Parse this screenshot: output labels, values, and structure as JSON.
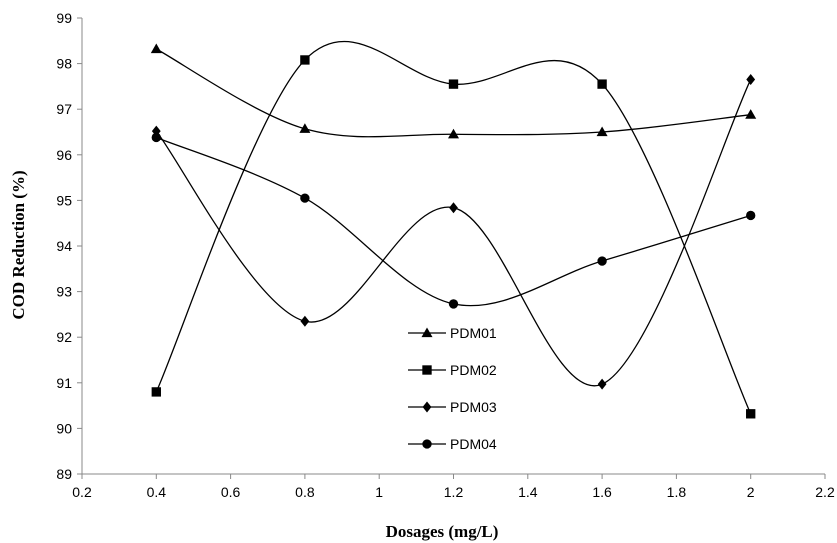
{
  "chart_data": {
    "type": "line",
    "title": "",
    "xlabel": "Dosages (mg/L)",
    "ylabel": "COD  Reduction  (%)",
    "xlim": [
      0.2,
      2.2
    ],
    "ylim": [
      89,
      99
    ],
    "xticks": [
      "0.2",
      "0.4",
      "0.6",
      "0.8",
      "1",
      "1.2",
      "1.4",
      "1.6",
      "1.8",
      "2",
      "2.2"
    ],
    "yticks": [
      "89",
      "90",
      "91",
      "92",
      "93",
      "94",
      "95",
      "96",
      "97",
      "98",
      "99"
    ],
    "grid": false,
    "smooth": true,
    "legend_position": "center",
    "x": [
      0.4,
      0.8,
      1.2,
      1.6,
      2.0
    ],
    "series": [
      {
        "name": "PDM01",
        "marker": "triangle",
        "values": [
          98.32,
          96.57,
          96.45,
          96.5,
          96.88
        ]
      },
      {
        "name": "PDM02",
        "marker": "square",
        "values": [
          90.8,
          98.08,
          97.55,
          97.55,
          90.32
        ]
      },
      {
        "name": "PDM03",
        "marker": "diamond",
        "values": [
          96.52,
          92.35,
          94.84,
          90.97,
          97.65
        ]
      },
      {
        "name": "PDM04",
        "marker": "circle",
        "values": [
          96.38,
          95.05,
          92.73,
          93.67,
          94.67
        ]
      }
    ],
    "colors": {
      "line": "#000000",
      "axis": "#888888"
    }
  }
}
